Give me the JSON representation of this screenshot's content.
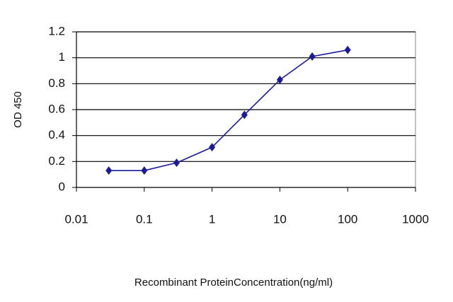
{
  "chart_data": {
    "type": "line",
    "x_label": "Recombinant ProteinConcentration(ng/ml)",
    "y_label": "OD 450",
    "x": [
      0.03,
      0.1,
      0.3,
      1,
      3,
      10,
      30,
      100
    ],
    "series": [
      {
        "color": "#1a1a9c",
        "values": [
          0.13,
          0.13,
          0.19,
          0.31,
          0.56,
          0.83,
          1.01,
          1.06
        ]
      }
    ],
    "xscale": "log",
    "xlim": [
      0.01,
      1000
    ],
    "xticks": [
      0.01,
      0.1,
      1,
      10,
      100,
      1000
    ],
    "ylim": [
      0,
      1.2
    ],
    "yticks": [
      0,
      0.2,
      0.4,
      0.6,
      0.8,
      1,
      1.2
    ],
    "grid": true
  }
}
